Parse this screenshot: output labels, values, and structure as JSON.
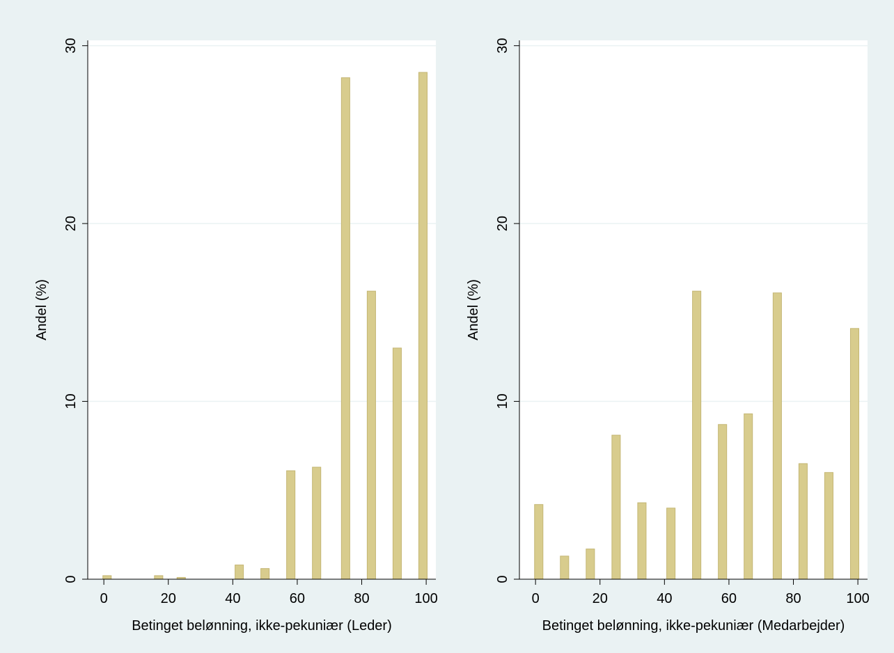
{
  "colors": {
    "background": "#eaf2f3",
    "plot_background": "#ffffff",
    "grid": "#eaf2f3",
    "bar_fill": "#d8cc8d",
    "bar_stroke": "#c4b674",
    "axis": "#000000"
  },
  "chart_data": [
    {
      "type": "bar",
      "xlabel": "Betinget belønning, ikke-pekuniær (Leder)",
      "ylabel": "Andel (%)",
      "xlim": [
        -5,
        103
      ],
      "ylim": [
        0,
        30.3
      ],
      "xticks": [
        0,
        20,
        40,
        60,
        80,
        100
      ],
      "yticks": [
        0,
        10,
        20,
        30
      ],
      "grid": true,
      "bar_width": 2.6,
      "x": [
        1,
        17,
        24,
        42,
        50,
        58,
        66,
        75,
        83,
        91,
        99
      ],
      "values": [
        0.2,
        0.2,
        0.1,
        0.8,
        0.6,
        6.1,
        6.3,
        28.2,
        16.2,
        13.0,
        28.5
      ]
    },
    {
      "type": "bar",
      "xlabel": "Betinget belønning, ikke-pekuniær (Medarbejder)",
      "ylabel": "Andel (%)",
      "xlim": [
        -5,
        103
      ],
      "ylim": [
        0,
        30.3
      ],
      "xticks": [
        0,
        20,
        40,
        60,
        80,
        100
      ],
      "yticks": [
        0,
        10,
        20,
        30
      ],
      "grid": true,
      "bar_width": 2.6,
      "x": [
        1,
        9,
        17,
        25,
        33,
        42,
        50,
        58,
        66,
        75,
        83,
        91,
        99
      ],
      "values": [
        4.2,
        1.3,
        1.7,
        8.1,
        4.3,
        4.0,
        16.2,
        8.7,
        9.3,
        16.1,
        6.5,
        6.0,
        14.1
      ]
    }
  ]
}
